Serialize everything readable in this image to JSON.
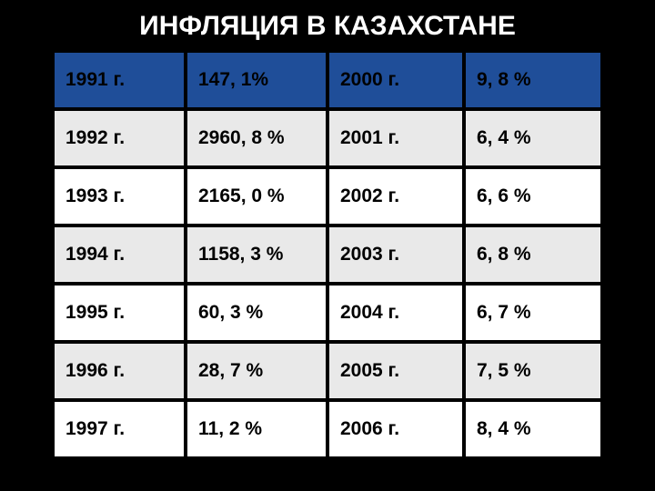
{
  "title": "ИНФЛЯЦИЯ В КАЗАХСТАНЕ",
  "table": {
    "type": "table",
    "background_color": "#000000",
    "title_color": "#ffffff",
    "title_fontsize": 30,
    "cell_fontsize": 21,
    "cell_fontweight": "bold",
    "header_row_bg": "#1f4e99",
    "alt_row_bg": "#e9e9e9",
    "white_row_bg": "#ffffff",
    "border_color": "#000000",
    "border_width": 4,
    "column_widths": [
      "24%",
      "26%",
      "25%",
      "25%"
    ],
    "rows": [
      {
        "style": "header",
        "cells": [
          "1991 г.",
          "147, 1%",
          "2000 г.",
          "9, 8 %"
        ]
      },
      {
        "style": "alt",
        "cells": [
          "1992 г.",
          "2960, 8 %",
          "2001 г.",
          "6, 4 %"
        ]
      },
      {
        "style": "white",
        "cells": [
          "1993 г.",
          "2165, 0 %",
          "2002 г.",
          "6, 6 %"
        ]
      },
      {
        "style": "alt",
        "cells": [
          "1994 г.",
          "1158, 3 %",
          "2003 г.",
          "6, 8 %"
        ]
      },
      {
        "style": "white",
        "cells": [
          "1995 г.",
          "60, 3 %",
          "2004 г.",
          "6, 7 %"
        ]
      },
      {
        "style": "alt",
        "cells": [
          "1996 г.",
          "28, 7 %",
          "2005 г.",
          "7, 5 %"
        ]
      },
      {
        "style": "white",
        "cells": [
          "1997 г.",
          "11, 2 %",
          "2006 г.",
          "8, 4 %"
        ]
      }
    ]
  }
}
